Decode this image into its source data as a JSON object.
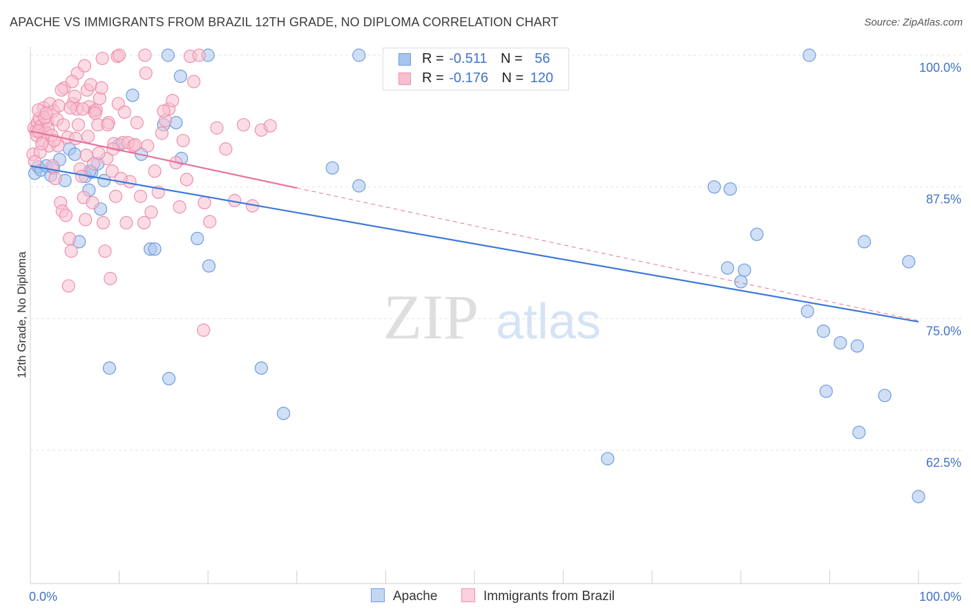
{
  "title": "APACHE VS IMMIGRANTS FROM BRAZIL 12TH GRADE, NO DIPLOMA CORRELATION CHART",
  "source": "Source: ZipAtlas.com",
  "watermark": {
    "zip": "ZIP",
    "atlas": "atlas"
  },
  "stats": [
    {
      "r_label": "R =",
      "r_value": "-0.511",
      "n_label": "N =",
      "n_value": "56",
      "color": "#a9c5ee",
      "border": "#6a9ce0"
    },
    {
      "r_label": "R =",
      "r_value": "-0.176",
      "n_label": "N =",
      "n_value": "120",
      "color": "#f7bfd0",
      "border": "#ee8fac"
    }
  ],
  "legend": [
    {
      "label": "Apache",
      "color": "#c4d7f2",
      "border": "#6a9ce0"
    },
    {
      "label": "Immigrants from Brazil",
      "color": "#f9d0dc",
      "border": "#ee8fac"
    }
  ],
  "chart_data": {
    "type": "scatter",
    "title": "APACHE VS IMMIGRANTS FROM BRAZIL 12TH GRADE, NO DIPLOMA CORRELATION CHART",
    "xlabel": "",
    "ylabel": "12th Grade, No Diploma",
    "xlim": [
      0,
      100
    ],
    "ylim": [
      52.5,
      101
    ],
    "x_tick_labels": [
      "0.0%",
      "100.0%"
    ],
    "y_ticks": [
      {
        "value": 100.0,
        "label": "100.0%"
      },
      {
        "value": 87.5,
        "label": "87.5%"
      },
      {
        "value": 75.0,
        "label": "75.0%"
      },
      {
        "value": 62.5,
        "label": "62.5%"
      }
    ],
    "grid": true,
    "legend_position": "bottom-center",
    "series": [
      {
        "name": "Apache",
        "color": "#6a9ce0",
        "fill": "#a9c5ee",
        "trend_color": "#3c78d8",
        "trend": {
          "x0": 0,
          "y0": 89.5,
          "x1": 100,
          "y1": 74.7,
          "dashed_from": null
        },
        "points": [
          [
            0.5,
            88.8
          ],
          [
            0.9,
            89.4
          ],
          [
            1.2,
            89.1
          ],
          [
            1.8,
            89.5
          ],
          [
            2.3,
            88.6
          ],
          [
            2.6,
            89.3
          ],
          [
            3.3,
            90.1
          ],
          [
            3.9,
            88.1
          ],
          [
            4.4,
            91.1
          ],
          [
            5.0,
            90.6
          ],
          [
            5.5,
            82.3
          ],
          [
            6.2,
            88.5
          ],
          [
            6.6,
            87.2
          ],
          [
            6.9,
            88.9
          ],
          [
            7.6,
            89.7
          ],
          [
            7.9,
            85.4
          ],
          [
            8.3,
            88.1
          ],
          [
            8.9,
            70.3
          ],
          [
            10.0,
            91.5
          ],
          [
            11.5,
            96.2
          ],
          [
            12.5,
            90.6
          ],
          [
            13.5,
            81.6
          ],
          [
            14.0,
            81.6
          ],
          [
            15.0,
            93.4
          ],
          [
            15.6,
            69.3
          ],
          [
            16.4,
            93.6
          ],
          [
            17.0,
            90.2
          ],
          [
            16.9,
            98.0
          ],
          [
            18.8,
            82.6
          ],
          [
            20.1,
            80.0
          ],
          [
            15.5,
            100.0
          ],
          [
            20.0,
            100.0
          ],
          [
            26.0,
            70.3
          ],
          [
            28.5,
            66.0
          ],
          [
            34.0,
            89.3
          ],
          [
            37.0,
            87.6
          ],
          [
            37.0,
            100.0
          ],
          [
            65.0,
            61.7
          ],
          [
            77.0,
            87.5
          ],
          [
            78.8,
            87.3
          ],
          [
            81.8,
            83.0
          ],
          [
            78.5,
            79.8
          ],
          [
            80.0,
            78.5
          ],
          [
            80.4,
            79.6
          ],
          [
            87.5,
            75.7
          ],
          [
            89.3,
            73.8
          ],
          [
            91.2,
            72.7
          ],
          [
            93.1,
            72.4
          ],
          [
            89.6,
            68.1
          ],
          [
            93.3,
            64.2
          ],
          [
            93.9,
            82.3
          ],
          [
            96.2,
            67.7
          ],
          [
            98.9,
            80.4
          ],
          [
            100.0,
            58.1
          ],
          [
            87.7,
            100.0
          ],
          [
            6.7,
            89.0
          ]
        ]
      },
      {
        "name": "Immigrants from Brazil",
        "color": "#ee8fac",
        "fill": "#f7bfd0",
        "trend_color": "#e8719a",
        "trend": {
          "x0": 0,
          "y0": 92.8,
          "x1": 100,
          "y1": 74.8,
          "solid_until": 30
        },
        "points": [
          [
            0.4,
            93.1
          ],
          [
            0.6,
            92.8
          ],
          [
            0.8,
            93.6
          ],
          [
            1.0,
            94.0
          ],
          [
            1.2,
            93.3
          ],
          [
            1.4,
            91.9
          ],
          [
            1.5,
            95.0
          ],
          [
            1.7,
            92.7
          ],
          [
            1.9,
            93.7
          ],
          [
            2.1,
            91.4
          ],
          [
            0.3,
            90.6
          ],
          [
            0.7,
            92.4
          ],
          [
            0.9,
            94.8
          ],
          [
            1.1,
            90.8
          ],
          [
            1.6,
            94.1
          ],
          [
            2.0,
            93.0
          ],
          [
            2.2,
            95.4
          ],
          [
            2.4,
            92.4
          ],
          [
            2.6,
            94.7
          ],
          [
            2.8,
            88.3
          ],
          [
            3.0,
            93.9
          ],
          [
            3.2,
            95.2
          ],
          [
            3.4,
            86.0
          ],
          [
            3.6,
            85.2
          ],
          [
            3.8,
            96.9
          ],
          [
            4.0,
            84.8
          ],
          [
            4.2,
            92.2
          ],
          [
            4.4,
            82.6
          ],
          [
            4.6,
            81.4
          ],
          [
            4.3,
            78.1
          ],
          [
            4.8,
            95.4
          ],
          [
            5.0,
            96.1
          ],
          [
            5.2,
            94.9
          ],
          [
            5.4,
            93.4
          ],
          [
            5.6,
            89.2
          ],
          [
            5.8,
            88.5
          ],
          [
            6.0,
            86.5
          ],
          [
            6.2,
            84.4
          ],
          [
            6.4,
            96.7
          ],
          [
            6.6,
            95.1
          ],
          [
            6.8,
            97.2
          ],
          [
            7.0,
            86.0
          ],
          [
            7.2,
            94.7
          ],
          [
            7.4,
            94.8
          ],
          [
            7.6,
            93.4
          ],
          [
            7.8,
            95.9
          ],
          [
            8.0,
            96.9
          ],
          [
            8.2,
            84.1
          ],
          [
            8.4,
            81.4
          ],
          [
            8.6,
            90.2
          ],
          [
            8.8,
            93.6
          ],
          [
            9.0,
            78.8
          ],
          [
            9.2,
            89.0
          ],
          [
            9.4,
            91.6
          ],
          [
            9.6,
            86.6
          ],
          [
            9.8,
            99.9
          ],
          [
            10.0,
            100.0
          ],
          [
            10.4,
            91.7
          ],
          [
            10.8,
            84.1
          ],
          [
            11.2,
            88.0
          ],
          [
            11.6,
            91.4
          ],
          [
            12.0,
            93.6
          ],
          [
            12.4,
            86.6
          ],
          [
            12.8,
            84.1
          ],
          [
            13.2,
            91.4
          ],
          [
            13.6,
            85.1
          ],
          [
            14.0,
            89.0
          ],
          [
            14.4,
            87.0
          ],
          [
            14.8,
            92.6
          ],
          [
            15.2,
            93.8
          ],
          [
            15.6,
            94.9
          ],
          [
            16.0,
            95.7
          ],
          [
            16.4,
            89.8
          ],
          [
            16.8,
            85.6
          ],
          [
            17.2,
            91.9
          ],
          [
            17.6,
            88.2
          ],
          [
            18.0,
            99.9
          ],
          [
            18.4,
            97.5
          ],
          [
            19.0,
            100.0
          ],
          [
            19.6,
            86.0
          ],
          [
            20.2,
            84.2
          ],
          [
            21.0,
            93.1
          ],
          [
            22.0,
            91.1
          ],
          [
            23.0,
            86.2
          ],
          [
            24.0,
            93.4
          ],
          [
            25.0,
            85.7
          ],
          [
            26.0,
            92.9
          ],
          [
            27.0,
            93.3
          ],
          [
            19.5,
            73.9
          ],
          [
            5.3,
            98.3
          ],
          [
            6.1,
            99.0
          ],
          [
            8.1,
            99.7
          ],
          [
            4.7,
            97.5
          ],
          [
            3.5,
            96.7
          ],
          [
            9.9,
            95.4
          ],
          [
            12.9,
            100.0
          ],
          [
            13.0,
            98.3
          ],
          [
            6.5,
            92.3
          ],
          [
            7.3,
            94.5
          ],
          [
            10.6,
            94.6
          ],
          [
            3.1,
            91.4
          ],
          [
            2.5,
            89.5
          ],
          [
            1.3,
            91.6
          ],
          [
            0.5,
            89.9
          ],
          [
            5.9,
            94.9
          ],
          [
            7.1,
            89.7
          ],
          [
            8.7,
            93.4
          ],
          [
            10.2,
            88.3
          ],
          [
            11.0,
            91.7
          ],
          [
            6.3,
            90.5
          ],
          [
            4.5,
            95.0
          ],
          [
            3.7,
            93.4
          ],
          [
            2.7,
            91.9
          ],
          [
            1.8,
            94.5
          ],
          [
            0.9,
            92.8
          ],
          [
            7.7,
            90.7
          ],
          [
            11.8,
            91.5
          ],
          [
            9.3,
            91.1
          ],
          [
            5.1,
            92.1
          ],
          [
            15.0,
            94.7
          ]
        ]
      }
    ]
  }
}
